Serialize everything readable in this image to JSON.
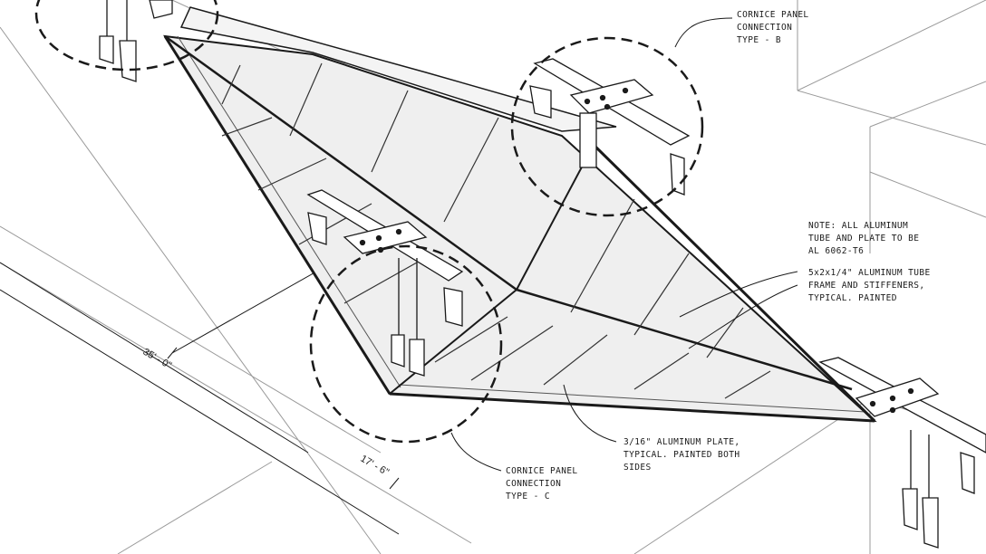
{
  "colors": {
    "ink": "#1a1a1a",
    "line": "#777777",
    "panel": "#efefef",
    "paper": "#ffffff"
  },
  "callouts": {
    "connection_b": {
      "lines": [
        "CORNICE PANEL",
        "CONNECTION",
        "TYPE - B"
      ]
    },
    "note": {
      "lines": [
        "NOTE: ALL ALUMINUM",
        "TUBE AND PLATE TO BE",
        "AL 6062-T6"
      ]
    },
    "tube": {
      "lines": [
        "5x2x1/4\" ALUMINUM TUBE",
        "FRAME AND STIFFENERS,",
        "TYPICAL. PAINTED"
      ]
    },
    "plate": {
      "lines": [
        "3/16\" ALUMINUM PLATE,",
        "TYPICAL. PAINTED BOTH",
        "SIDES"
      ]
    },
    "connection_c": {
      "lines": [
        "CORNICE PANEL",
        "CONNECTION",
        "TYPE - C"
      ]
    }
  },
  "dimensions": {
    "length": "35' - 0\"",
    "depth": "17' - 6\""
  }
}
